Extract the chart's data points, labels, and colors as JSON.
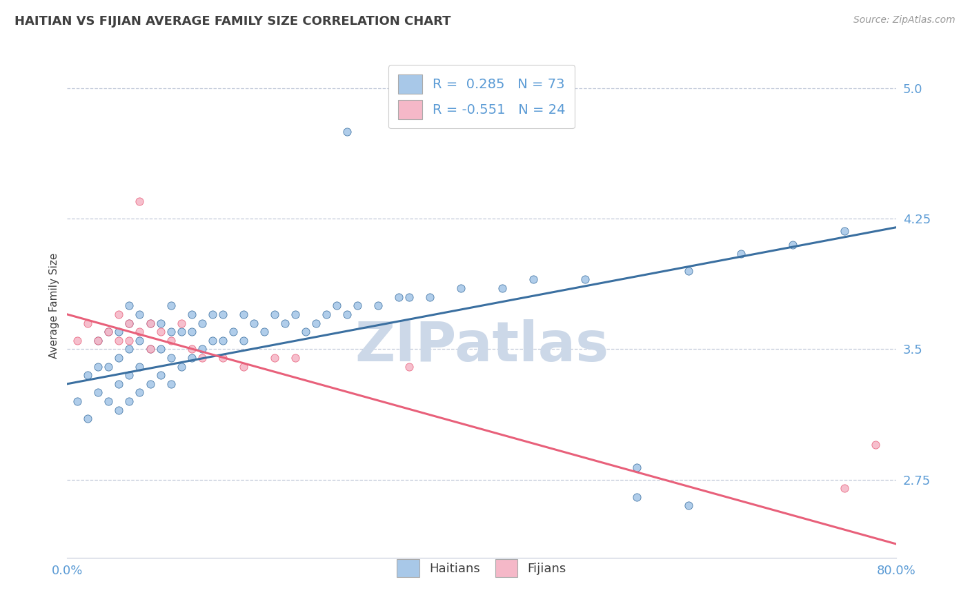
{
  "title": "HAITIAN VS FIJIAN AVERAGE FAMILY SIZE CORRELATION CHART",
  "source_text": "Source: ZipAtlas.com",
  "ylabel": "Average Family Size",
  "xmin": 0.0,
  "xmax": 0.8,
  "ymin": 2.3,
  "ymax": 5.2,
  "yticks": [
    2.75,
    3.5,
    4.25,
    5.0
  ],
  "xticks": [
    0.0,
    0.1,
    0.2,
    0.3,
    0.4,
    0.5,
    0.6,
    0.7,
    0.8
  ],
  "xtick_labels": [
    "0.0%",
    "",
    "",
    "",
    "",
    "",
    "",
    "",
    "80.0%"
  ],
  "blue_color": "#a8c8e8",
  "pink_color": "#f5b8c8",
  "line_blue": "#3a6fa0",
  "line_pink": "#e8607a",
  "axis_color": "#5b9bd5",
  "title_color": "#404040",
  "watermark_color": "#ccd8e8",
  "R_blue": 0.285,
  "N_blue": 73,
  "R_pink": -0.551,
  "N_pink": 24,
  "blue_line_x0": 0.0,
  "blue_line_y0": 3.3,
  "blue_line_x1": 0.8,
  "blue_line_y1": 4.2,
  "pink_line_x0": 0.0,
  "pink_line_y0": 3.7,
  "pink_line_x1": 0.8,
  "pink_line_y1": 2.38,
  "blue_scatter_x": [
    0.01,
    0.02,
    0.02,
    0.03,
    0.03,
    0.03,
    0.04,
    0.04,
    0.04,
    0.05,
    0.05,
    0.05,
    0.05,
    0.06,
    0.06,
    0.06,
    0.06,
    0.06,
    0.07,
    0.07,
    0.07,
    0.07,
    0.08,
    0.08,
    0.08,
    0.09,
    0.09,
    0.09,
    0.1,
    0.1,
    0.1,
    0.1,
    0.11,
    0.11,
    0.12,
    0.12,
    0.12,
    0.13,
    0.13,
    0.14,
    0.14,
    0.15,
    0.15,
    0.16,
    0.17,
    0.17,
    0.18,
    0.19,
    0.2,
    0.21,
    0.22,
    0.23,
    0.24,
    0.25,
    0.26,
    0.27,
    0.28,
    0.3,
    0.32,
    0.33,
    0.35,
    0.38,
    0.42,
    0.45,
    0.5,
    0.55,
    0.6,
    0.65,
    0.7,
    0.75,
    0.27,
    0.55,
    0.6
  ],
  "blue_scatter_y": [
    3.2,
    3.1,
    3.35,
    3.25,
    3.4,
    3.55,
    3.2,
    3.4,
    3.6,
    3.15,
    3.3,
    3.45,
    3.6,
    3.2,
    3.35,
    3.5,
    3.65,
    3.75,
    3.25,
    3.4,
    3.55,
    3.7,
    3.3,
    3.5,
    3.65,
    3.35,
    3.5,
    3.65,
    3.3,
    3.45,
    3.6,
    3.75,
    3.4,
    3.6,
    3.45,
    3.6,
    3.7,
    3.5,
    3.65,
    3.55,
    3.7,
    3.55,
    3.7,
    3.6,
    3.55,
    3.7,
    3.65,
    3.6,
    3.7,
    3.65,
    3.7,
    3.6,
    3.65,
    3.7,
    3.75,
    3.7,
    3.75,
    3.75,
    3.8,
    3.8,
    3.8,
    3.85,
    3.85,
    3.9,
    3.9,
    2.82,
    3.95,
    4.05,
    4.1,
    4.18,
    4.75,
    2.65,
    2.6
  ],
  "pink_scatter_x": [
    0.01,
    0.02,
    0.03,
    0.04,
    0.05,
    0.05,
    0.06,
    0.06,
    0.07,
    0.07,
    0.08,
    0.08,
    0.09,
    0.1,
    0.11,
    0.12,
    0.13,
    0.15,
    0.17,
    0.2,
    0.22,
    0.33,
    0.75,
    0.78
  ],
  "pink_scatter_y": [
    3.55,
    3.65,
    3.55,
    3.6,
    3.55,
    3.7,
    3.55,
    3.65,
    3.6,
    4.35,
    3.5,
    3.65,
    3.6,
    3.55,
    3.65,
    3.5,
    3.45,
    3.45,
    3.4,
    3.45,
    3.45,
    3.4,
    2.7,
    2.95
  ],
  "legend_labels": [
    "Haitians",
    "Fijians"
  ],
  "background_color": "#ffffff",
  "grid_color": "#c0c8d8"
}
